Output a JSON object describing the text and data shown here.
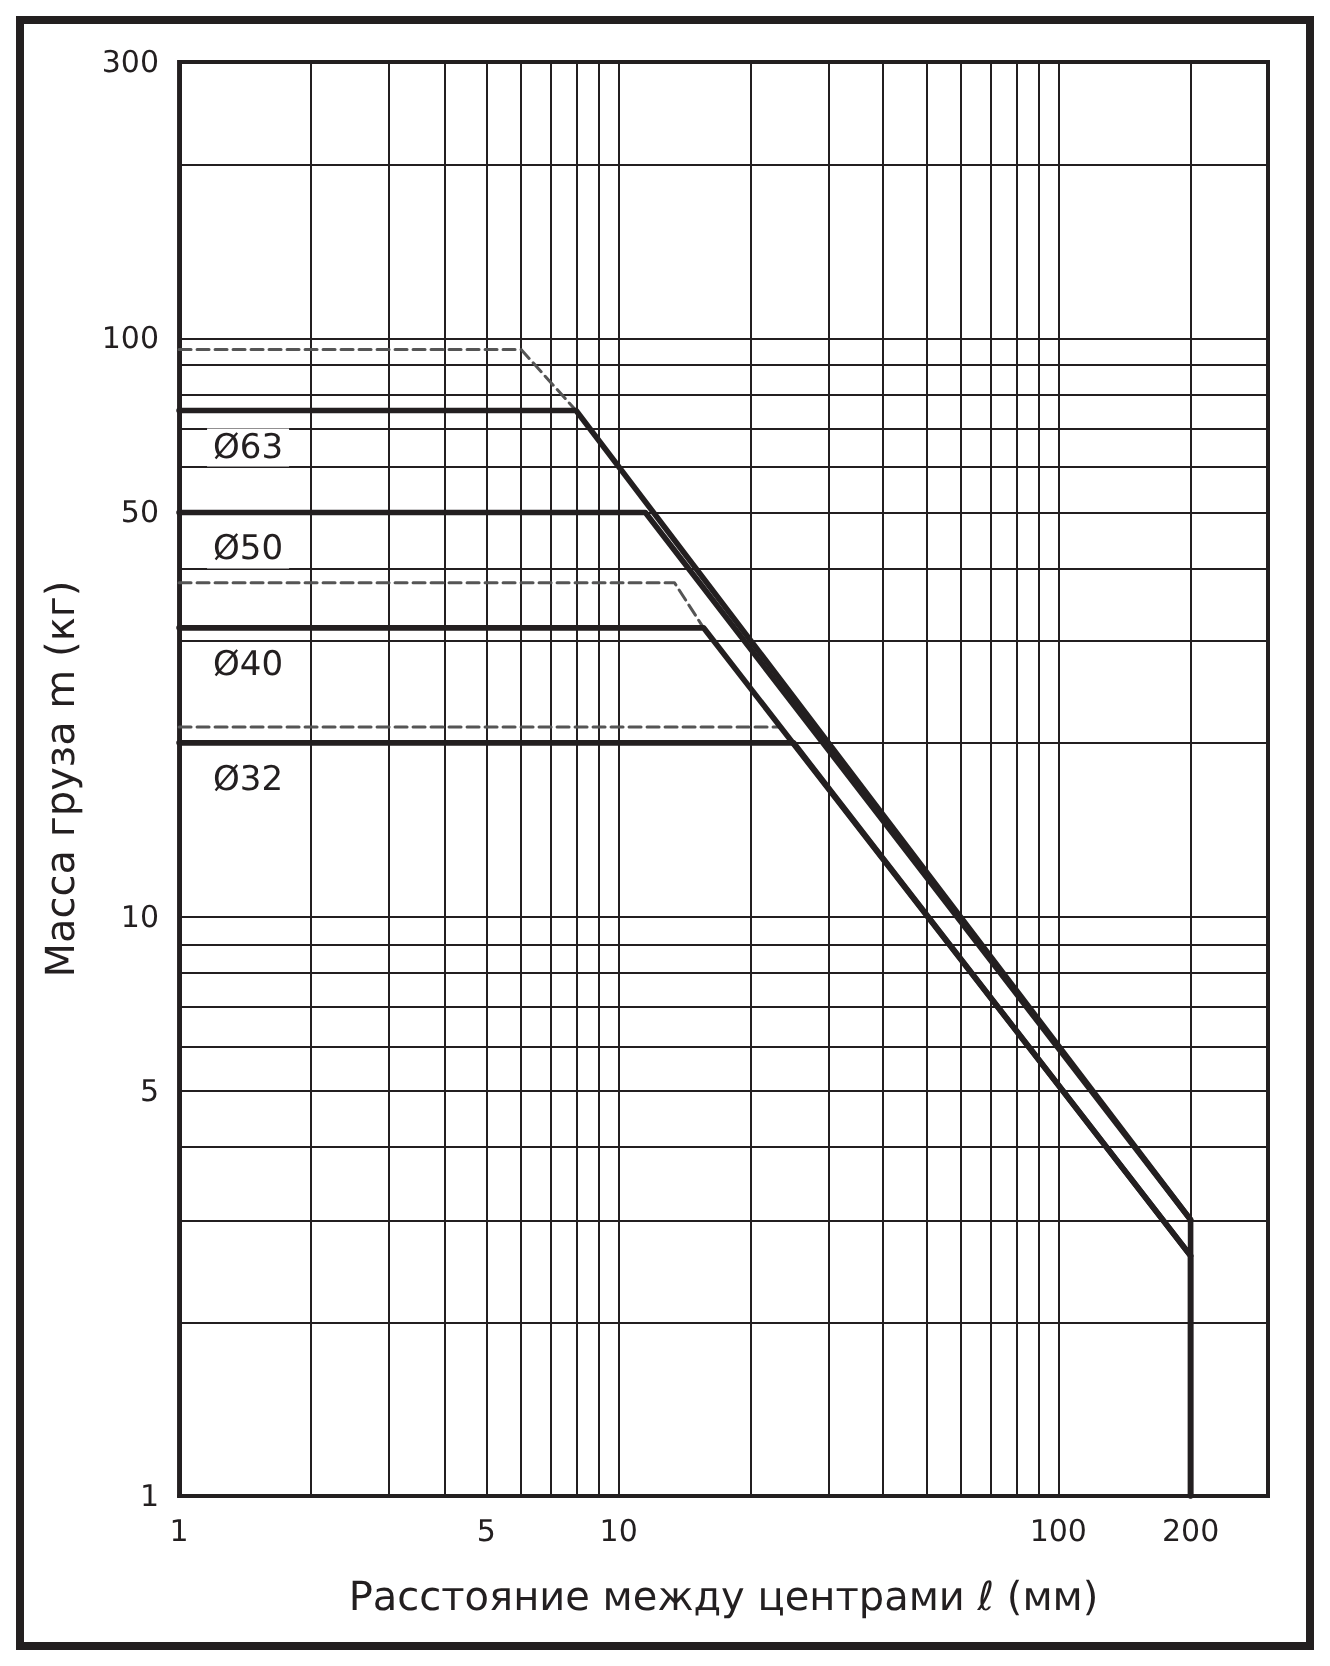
{
  "chart_data": {
    "type": "line",
    "xlabel": "Расстояние между центрами ℓ (мм)",
    "ylabel": "Масса груза m (кг)",
    "log": "xy",
    "grid": true,
    "legend": false,
    "marker": "none",
    "line_style": "solid",
    "xlim": [
      1,
      300
    ],
    "ylim": [
      1,
      300
    ],
    "xticks": [
      1,
      {
        "value": 2,
        "label": null
      },
      {
        "value": 3,
        "label": null
      },
      {
        "value": 4,
        "label": null
      },
      5,
      {
        "value": 6,
        "label": null
      },
      {
        "value": 7,
        "label": null
      },
      {
        "value": 8,
        "label": null
      },
      {
        "value": 9,
        "label": null
      },
      10,
      {
        "value": 20,
        "label": null
      },
      {
        "value": 30,
        "label": null
      },
      {
        "value": 40,
        "label": null
      },
      {
        "value": 50,
        "label": null
      },
      {
        "value": 60,
        "label": null
      },
      {
        "value": 70,
        "label": null
      },
      {
        "value": 80,
        "label": null
      },
      {
        "value": 90,
        "label": null
      },
      100,
      200
    ],
    "yticks": [
      1,
      {
        "value": 2,
        "label": null
      },
      {
        "value": 3,
        "label": null
      },
      {
        "value": 4,
        "label": null
      },
      5,
      {
        "value": 6,
        "label": null
      },
      {
        "value": 7,
        "label": null
      },
      {
        "value": 8,
        "label": null
      },
      {
        "value": 9,
        "label": null
      },
      10,
      {
        "value": 20,
        "label": null
      },
      {
        "value": 30,
        "label": null
      },
      {
        "value": 40,
        "label": null
      },
      50,
      {
        "value": 60,
        "label": null
      },
      {
        "value": 70,
        "label": null
      },
      {
        "value": 80,
        "label": null
      },
      {
        "value": 90,
        "label": null
      },
      100,
      {
        "value": 200,
        "label": null
      },
      300
    ],
    "series": [
      {
        "name": "Ø63",
        "color": "#231f20",
        "x": [
          1,
          8,
          200,
          200
        ],
        "values": [
          75,
          75,
          3,
          1
        ]
      },
      {
        "name": "Ø50",
        "color": "#231f20",
        "x": [
          1,
          11.5,
          200
        ],
        "values": [
          50,
          50,
          3
        ]
      },
      {
        "name": "Ø40",
        "color": "#231f20",
        "x": [
          1,
          15.6,
          200,
          200
        ],
        "values": [
          31.6,
          31.6,
          2.6,
          1
        ]
      },
      {
        "name": "Ø32",
        "color": "#231f20",
        "x": [
          1,
          25,
          200
        ],
        "values": [
          20,
          20,
          2.6
        ]
      },
      {
        "color": "#555555",
        "line_style": "dashed",
        "x": [
          1,
          6,
          8
        ],
        "values": [
          95.6,
          95.6,
          75
        ]
      },
      {
        "color": "#555555",
        "line_style": "dashed",
        "x": [
          1,
          13.4,
          15.6
        ],
        "values": [
          37.8,
          37.8,
          31.6
        ]
      },
      {
        "color": "#555555",
        "line_style": "dashed",
        "x": [
          1,
          23.3,
          25
        ],
        "values": [
          21.3,
          21.3,
          20
        ]
      }
    ]
  }
}
